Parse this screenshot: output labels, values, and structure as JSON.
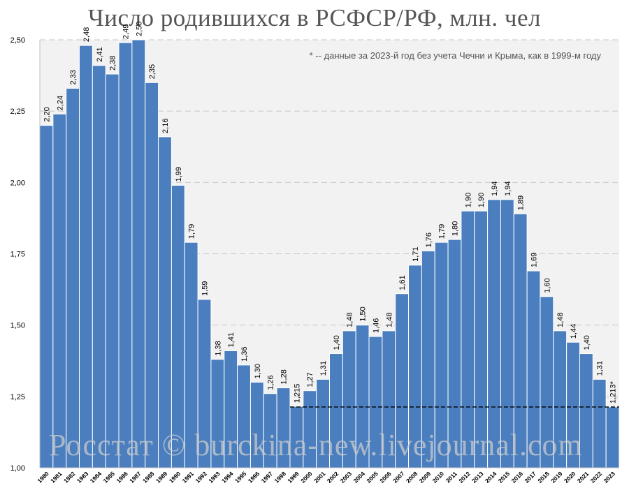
{
  "chart_data": {
    "type": "bar",
    "title": "Число родившихся в РСФСР/РФ, млн. чел",
    "note": "* -- данные за 2023-й год без учета Чечни и Крыма, как в 1999-м году",
    "watermark": "Росстат © burckina-new.livejournal.com",
    "ylim": [
      1.0,
      2.5
    ],
    "yticks": [
      "1,00",
      "1,25",
      "1,50",
      "1,75",
      "2,00",
      "2,25",
      "2,50"
    ],
    "categories": [
      "1980",
      "1981",
      "1982",
      "1983",
      "1984",
      "1985",
      "1986",
      "1987",
      "1988",
      "1989",
      "1990",
      "1991",
      "1992",
      "1993",
      "1994",
      "1995",
      "1996",
      "1997",
      "1998",
      "1999",
      "2000",
      "2001",
      "2002",
      "2003",
      "2004",
      "2005",
      "2006",
      "2007",
      "2008",
      "2009",
      "2010",
      "2011",
      "2012",
      "2013",
      "2014",
      "2015",
      "2016",
      "2017",
      "2018",
      "2019",
      "2020",
      "2021",
      "2022",
      "2023"
    ],
    "values": [
      2.2,
      2.24,
      2.33,
      2.48,
      2.41,
      2.38,
      2.49,
      2.5,
      2.35,
      2.16,
      1.99,
      1.79,
      1.59,
      1.38,
      1.41,
      1.36,
      1.3,
      1.26,
      1.28,
      1.215,
      1.27,
      1.31,
      1.4,
      1.48,
      1.5,
      1.46,
      1.48,
      1.61,
      1.71,
      1.76,
      1.79,
      1.8,
      1.9,
      1.9,
      1.94,
      1.94,
      1.89,
      1.69,
      1.6,
      1.48,
      1.44,
      1.4,
      1.31,
      1.213
    ],
    "labels": [
      "2,20",
      "2,24",
      "2,33",
      "2,48",
      "2,41",
      "2,38",
      "2,49",
      "2,50",
      "2,35",
      "2,16",
      "1,99",
      "1,79",
      "1,59",
      "1,38",
      "1,41",
      "1,36",
      "1,30",
      "1,26",
      "1,28",
      "1,215",
      "1,27",
      "1,31",
      "1,40",
      "1,48",
      "1,50",
      "1,46",
      "1,48",
      "1,61",
      "1,71",
      "1,76",
      "1,79",
      "1,80",
      "1,90",
      "1,90",
      "1,94",
      "1,94",
      "1,89",
      "1,69",
      "1,60",
      "1,48",
      "1,44",
      "1,40",
      "1,31",
      "1,213*"
    ],
    "reference_line": {
      "value": 1.213,
      "style": "dashed"
    },
    "grid": true,
    "colors": {
      "bar": "#4a7ebf",
      "bar_edge": "#ffffff",
      "plot_bg": "#f2f2f2",
      "grid": "#c6c6c6",
      "text": "#000000",
      "reference_line": "#000000"
    }
  }
}
